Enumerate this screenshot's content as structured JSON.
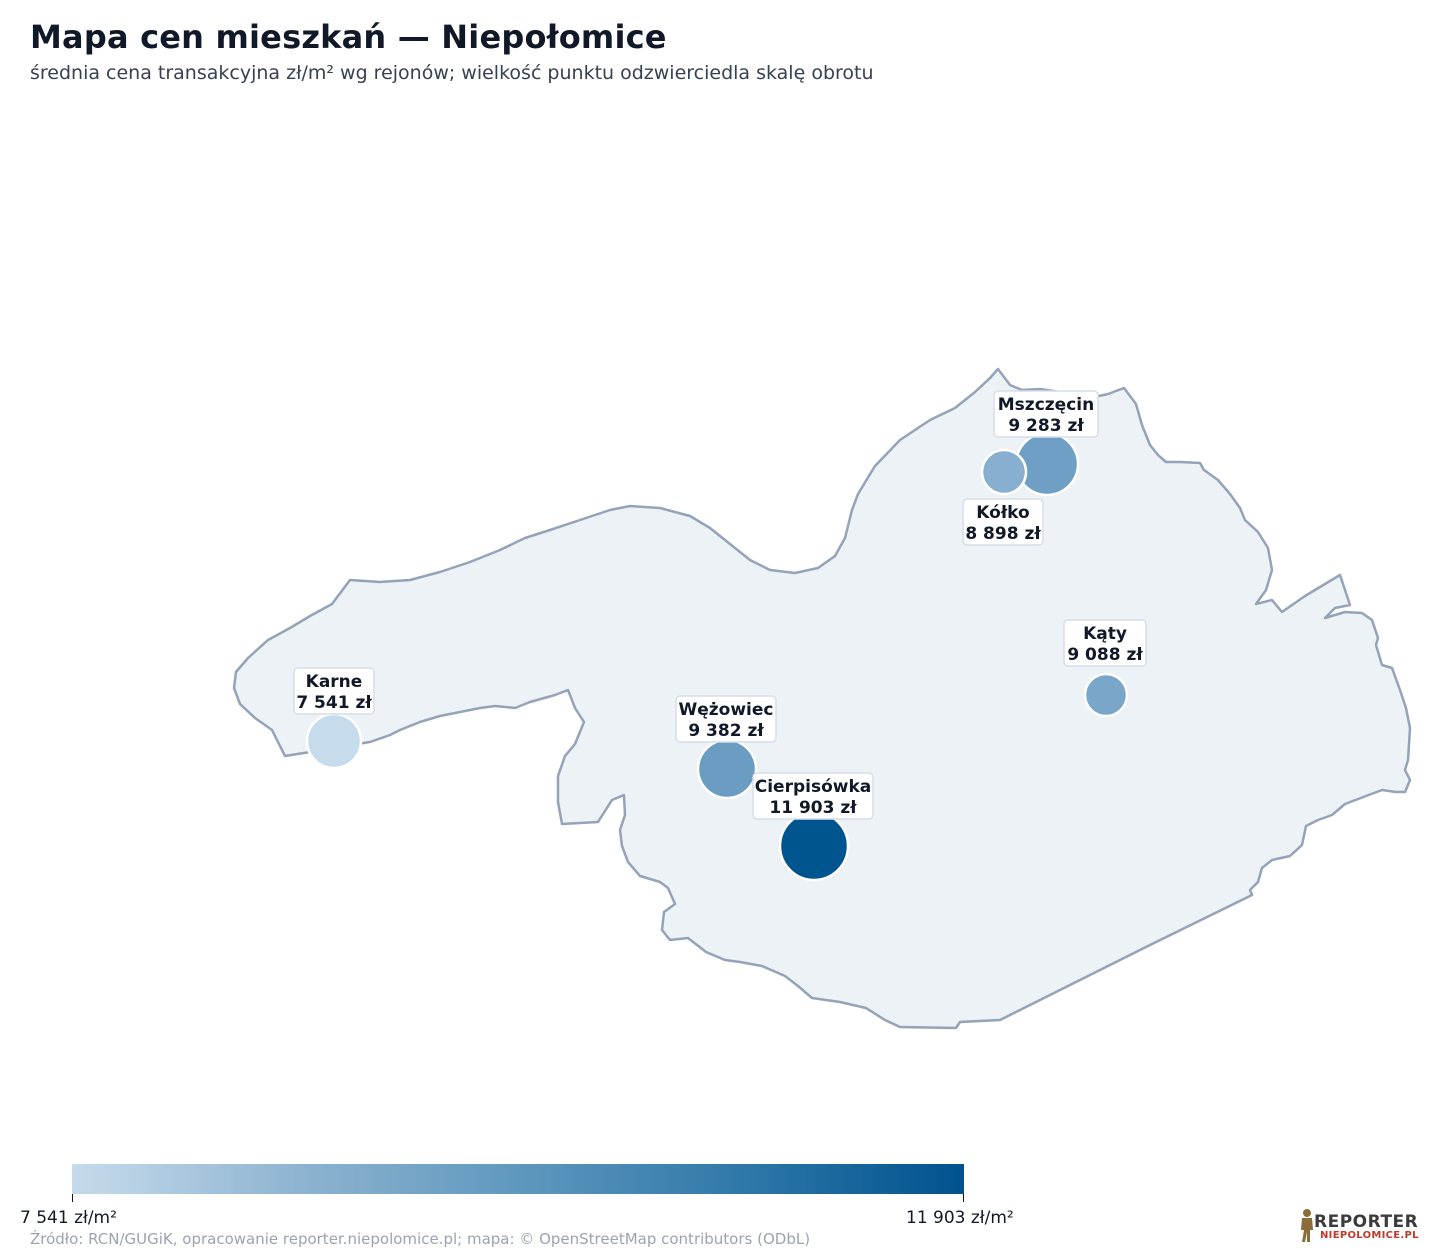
{
  "header": {
    "title": "Mapa cen mieszkań — Niepołomice",
    "subtitle": "średnia cena transakcyjna zł/m² wg rejonów; wielkość punktu odzwierciedla skalę obrotu"
  },
  "regions": [
    {
      "name": "Mszczęcin",
      "price_label": "9 283 zł",
      "price": 9283,
      "color": "#6f9fc4"
    },
    {
      "name": "Kółko",
      "price_label": "8 898 zł",
      "price": 8898,
      "color": "#88afd0"
    },
    {
      "name": "Kąty",
      "price_label": "9 088 zł",
      "price": 9088,
      "color": "#7aa7c9"
    },
    {
      "name": "Karne",
      "price_label": "7 541 zł",
      "price": 7541,
      "color": "#c6dbec"
    },
    {
      "name": "Wężowiec",
      "price_label": "9 382 zł",
      "price": 9382,
      "color": "#6b9cc2"
    },
    {
      "name": "Cierpisówka",
      "price_label": "11 903 zł",
      "price": 11903,
      "color": "#00558f"
    }
  ],
  "legend": {
    "min_label": "7 541 zł/m²",
    "max_label": "11 903 zł/m²",
    "min_color": "#c6dbec",
    "max_color": "#00528e"
  },
  "footer": {
    "source": "Źródło: RCN/GUGiK, opracowanie reporter.niepolomice.pl; mapa: © OpenStreetMap contributors (ODbL)",
    "logo_line1": "REPORTER",
    "logo_line2": "NIEPOLOMICE.PL"
  }
}
